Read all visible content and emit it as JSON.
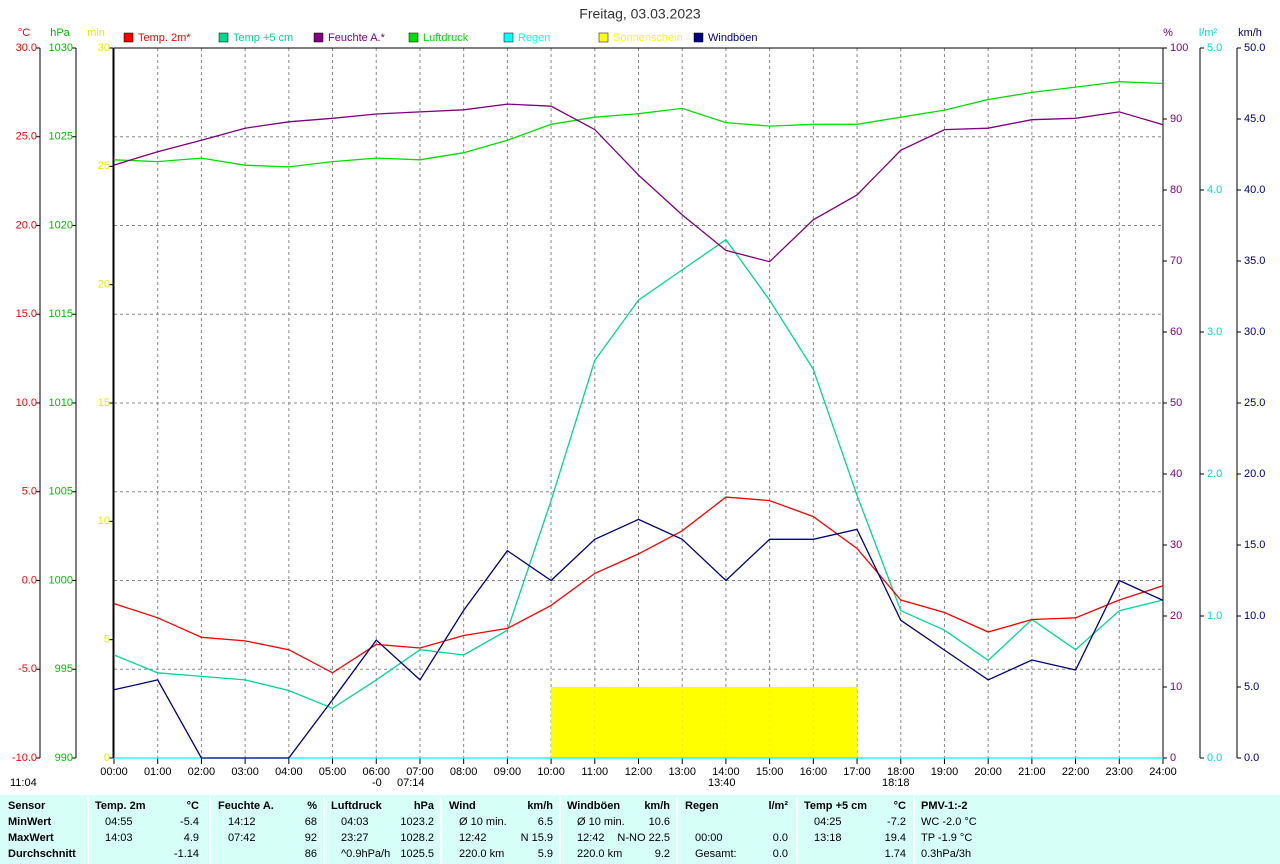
{
  "chart_data": {
    "type": "line",
    "title": "Freitag, 03.03.2023",
    "x": [
      0,
      1,
      2,
      3,
      4,
      5,
      6,
      7,
      8,
      9,
      10,
      11,
      12,
      13,
      14,
      15,
      16,
      17,
      18,
      19,
      20,
      21,
      22,
      23,
      24
    ],
    "xlim": [
      0,
      24
    ],
    "xticks": [
      {
        "value": 0,
        "label": "00:00"
      },
      {
        "value": 1,
        "label": "01:00"
      },
      {
        "value": 2,
        "label": "02:00"
      },
      {
        "value": 3,
        "label": "03:00"
      },
      {
        "value": 4,
        "label": "04:00"
      },
      {
        "value": 5,
        "label": "05:00"
      },
      {
        "value": 6,
        "label": "06:00"
      },
      {
        "value": 7,
        "label": "07:00"
      },
      {
        "value": 8,
        "label": "08:00"
      },
      {
        "value": 9,
        "label": "09:00"
      },
      {
        "value": 10,
        "label": "10:00"
      },
      {
        "value": 11,
        "label": "11:00"
      },
      {
        "value": 12,
        "label": "12:00"
      },
      {
        "value": 13,
        "label": "13:00"
      },
      {
        "value": 14,
        "label": "14:00"
      },
      {
        "value": 15,
        "label": "15:00"
      },
      {
        "value": 16,
        "label": "16:00"
      },
      {
        "value": 17,
        "label": "17:00"
      },
      {
        "value": 18,
        "label": "18:00"
      },
      {
        "value": 19,
        "label": "19:00"
      },
      {
        "value": 20,
        "label": "20:00"
      },
      {
        "value": 21,
        "label": "21:00"
      },
      {
        "value": 22,
        "label": "22:00"
      },
      {
        "value": 23,
        "label": "23:00"
      },
      {
        "value": 24,
        "label": "24:00"
      }
    ],
    "grid": true,
    "axes": [
      {
        "label": "°C",
        "color": "#ff0000",
        "lim": [
          -10,
          30
        ],
        "ticks": [
          {
            "value": -10,
            "label": "-10.0"
          },
          {
            "value": -5,
            "label": "-5.0"
          },
          {
            "value": 0,
            "label": "0.0"
          },
          {
            "value": 5,
            "label": "5.0"
          },
          {
            "value": 10,
            "label": "10.0"
          },
          {
            "value": 15,
            "label": "15.0"
          },
          {
            "value": 20,
            "label": "20.0"
          },
          {
            "value": 25,
            "label": "25.0"
          },
          {
            "value": 30,
            "label": "30.0"
          }
        ]
      },
      {
        "label": "hPa",
        "color": "#00c000",
        "lim": [
          990,
          1030
        ],
        "ticks": [
          990,
          995,
          1000,
          1005,
          1010,
          1015,
          1020,
          1025,
          1030
        ]
      },
      {
        "label": "min",
        "color": "#e8e800",
        "lim": [
          0,
          30
        ],
        "ticks": [
          0,
          5,
          10,
          15,
          20,
          25,
          30
        ]
      },
      {
        "label": "%",
        "color": "#800080",
        "lim": [
          0,
          100
        ],
        "ticks": [
          0,
          10,
          20,
          30,
          40,
          50,
          60,
          70,
          80,
          90,
          100
        ]
      },
      {
        "label": "l/m²",
        "color": "#00d8d8",
        "lim": [
          0,
          5
        ],
        "ticks": [
          {
            "value": 0,
            "label": "0.0"
          },
          {
            "value": 1,
            "label": "1.0"
          },
          {
            "value": 2,
            "label": "2.0"
          },
          {
            "value": 3,
            "label": "3.0"
          },
          {
            "value": 4,
            "label": "4.0"
          },
          {
            "value": 5,
            "label": "5.0"
          }
        ]
      },
      {
        "label": "km/h",
        "color": "#000080",
        "lim": [
          0,
          50
        ],
        "ticks": [
          {
            "value": 0,
            "label": "0.0"
          },
          {
            "value": 5,
            "label": "5.0"
          },
          {
            "value": 10,
            "label": "10.0"
          },
          {
            "value": 15,
            "label": "15.0"
          },
          {
            "value": 20,
            "label": "20.0"
          },
          {
            "value": 25,
            "label": "25.0"
          },
          {
            "value": 30,
            "label": "30.0"
          },
          {
            "value": 35,
            "label": "35.0"
          },
          {
            "value": 40,
            "label": "40.0"
          },
          {
            "value": 45,
            "label": "45.0"
          },
          {
            "value": 50,
            "label": "50.0"
          }
        ]
      }
    ],
    "series": [
      {
        "name": "Temp. 2m*",
        "color": "#ff0000",
        "axis": 0,
        "values": [
          -1.3,
          -2.1,
          -3.2,
          -3.4,
          -3.9,
          -5.2,
          -3.6,
          -3.8,
          -3.1,
          -2.7,
          -1.4,
          0.4,
          1.5,
          2.8,
          4.7,
          4.5,
          3.6,
          1.8,
          -1.1,
          -1.8,
          -2.9,
          -2.2,
          -2.1,
          -1.1,
          -0.3
        ]
      },
      {
        "name": "Temp +5 cm",
        "color": "#00d890",
        "axis": 0,
        "values": [
          -4.2,
          -5.2,
          -5.4,
          -5.6,
          -6.2,
          -7.2,
          -5.6,
          -3.9,
          -4.2,
          -2.8,
          4.5,
          12.4,
          15.8,
          17.5,
          19.2,
          15.8,
          11.9,
          4.8,
          -1.7,
          -2.8,
          -4.5,
          -2.2,
          -3.9,
          -1.7,
          -1.1
        ]
      },
      {
        "name": "Feuchte A.*",
        "color": "#800080",
        "axis": 3,
        "values": [
          83.5,
          85.4,
          87,
          88.7,
          89.6,
          90.1,
          90.7,
          91,
          91.3,
          92.1,
          91.8,
          88.5,
          82.1,
          76.5,
          71.5,
          69.9,
          75.8,
          79.3,
          85.6,
          88.5,
          88.7,
          89.9,
          90.1,
          91,
          89.2
        ]
      },
      {
        "name": "Luftdruck",
        "color": "#00e000",
        "axis": 1,
        "values": [
          1023.7,
          1023.6,
          1023.8,
          1023.4,
          1023.3,
          1023.6,
          1023.8,
          1023.7,
          1024.1,
          1024.8,
          1025.7,
          1026.1,
          1026.3,
          1026.6,
          1025.8,
          1025.6,
          1025.7,
          1025.7,
          1026.1,
          1026.5,
          1027.1,
          1027.5,
          1027.8,
          1028.1,
          1028.0
        ]
      },
      {
        "name": "Regen",
        "color": "#00ffff",
        "axis": 4,
        "values": [
          0,
          0,
          0,
          0,
          0,
          0,
          0,
          0,
          0,
          0,
          0,
          0,
          0,
          0,
          0,
          0,
          0,
          0,
          0,
          0,
          0,
          0,
          0,
          0,
          0
        ]
      },
      {
        "name": "Sonnenschein",
        "color": "#ffff00",
        "axis": 2,
        "style": "bars",
        "values": [
          0,
          0,
          0,
          0,
          0,
          0,
          0,
          0,
          0,
          0,
          3,
          3,
          3,
          3,
          3,
          3,
          3,
          0,
          0,
          0,
          0,
          0,
          0,
          0,
          0
        ]
      },
      {
        "name": "Windböen",
        "color": "#000080",
        "axis": 5,
        "values": [
          4.8,
          5.5,
          0,
          0,
          0,
          4.1,
          8.3,
          5.5,
          10.4,
          14.6,
          12.5,
          15.4,
          16.8,
          15.4,
          12.5,
          15.4,
          15.4,
          16.1,
          9.7,
          7.6,
          5.5,
          6.9,
          6.2,
          12.5,
          11.1
        ]
      }
    ],
    "annotations": [
      "11:04",
      "-0",
      "07:14",
      "13:40",
      "18:18"
    ]
  },
  "table": {
    "header": [
      "Sensor",
      "Temp. 2m",
      "°C",
      "Feuchte A.",
      "%",
      "Luftdruck",
      "hPa",
      "Wind",
      "km/h",
      "Windböen",
      "km/h",
      "Regen",
      "l/m²",
      "Temp +5 cm",
      "°C",
      "PMV-1:-2"
    ],
    "rows": [
      [
        "MinWert",
        "04:55",
        "-5.4",
        "14:12",
        "68",
        "04:03",
        "1023.2",
        "Ø 10 min.",
        "6.5",
        "Ø 10 min.",
        "10.6",
        null,
        null,
        "04:25",
        "-7.2",
        "WC -2.0 °C"
      ],
      [
        "MaxWert",
        "14:03",
        "4.9",
        "07:42",
        "92",
        "23:27",
        "1028.2",
        "12:42",
        "N 15.9",
        "12:42",
        "N-NO 22.5",
        "00:00",
        "0.0",
        "13:18",
        "19.4",
        "TP -1.9 °C"
      ],
      [
        "Durchschnitt",
        null,
        "-1.14",
        null,
        "86",
        "^0.9hPa/h",
        "1025.5",
        "220.0 km",
        "5.9",
        "220.0 km",
        "9.2",
        "Gesamt:",
        "0.0",
        null,
        "1.74",
        "0.3hPa/3h"
      ]
    ]
  }
}
